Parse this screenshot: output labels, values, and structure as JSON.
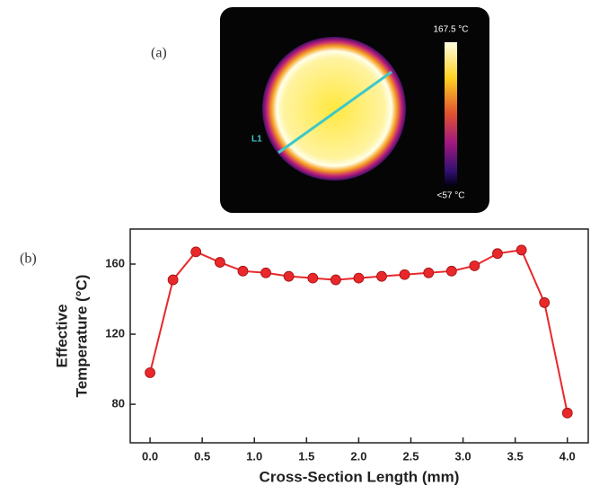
{
  "panel_a": {
    "label": "(a)",
    "colorbar_max": "167.5 °C",
    "colorbar_min": "<57 °C",
    "line_label": "L1"
  },
  "chart_data": {
    "type": "line",
    "panel_label": "(b)",
    "xlabel": "Cross-Section Length (mm)",
    "ylabel_lines": [
      "Effective",
      "Temperature (°C)"
    ],
    "x": [
      0.0,
      0.22,
      0.44,
      0.67,
      0.89,
      1.11,
      1.33,
      1.56,
      1.78,
      2.0,
      2.22,
      2.44,
      2.67,
      2.89,
      3.11,
      3.33,
      3.56,
      3.78,
      4.0
    ],
    "series": [
      {
        "color": "#e8282b",
        "values": [
          98,
          151,
          167,
          161,
          156,
          155,
          153,
          152,
          151,
          152,
          153,
          154,
          155,
          156,
          159,
          166,
          168,
          138,
          75
        ]
      }
    ],
    "xlim": [
      -0.19,
      4.2
    ],
    "ylim": [
      58,
      180
    ],
    "xticks": [
      {
        "value": 0,
        "label": "0.0"
      },
      0.5,
      {
        "value": 1,
        "label": "1.0"
      },
      1.5,
      {
        "value": 2,
        "label": "2.0"
      },
      2.5,
      {
        "value": 3,
        "label": "3.0"
      },
      3.5,
      {
        "value": 4,
        "label": "4.0"
      }
    ],
    "yticks": [
      80,
      120,
      160
    ]
  }
}
